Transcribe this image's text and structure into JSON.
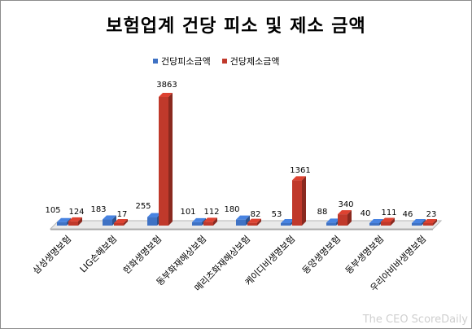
{
  "chart_data": {
    "type": "bar",
    "title": "보험업계 건당 피소 및 제소 금액",
    "categories": [
      "삼성생명보험",
      "LIG손해보험",
      "한화생명보험",
      "동부화재해상보험",
      "메리츠화재해상보험",
      "케이디비생명보험",
      "동양생명보험",
      "동부생명보험",
      "우리아비바생명보험"
    ],
    "series": [
      {
        "name": "건당피소금액",
        "color": "#3f72c4",
        "values": [
          105,
          183,
          255,
          101,
          180,
          53,
          88,
          40,
          46
        ]
      },
      {
        "name": "건당제소금액",
        "color": "#c0392b",
        "values": [
          124,
          17,
          3863,
          112,
          82,
          1361,
          340,
          111,
          23
        ]
      }
    ],
    "ylim": [
      0,
      3863
    ],
    "grid": false,
    "legend_placement": "top"
  },
  "watermark": "The CEO ScoreDaily"
}
